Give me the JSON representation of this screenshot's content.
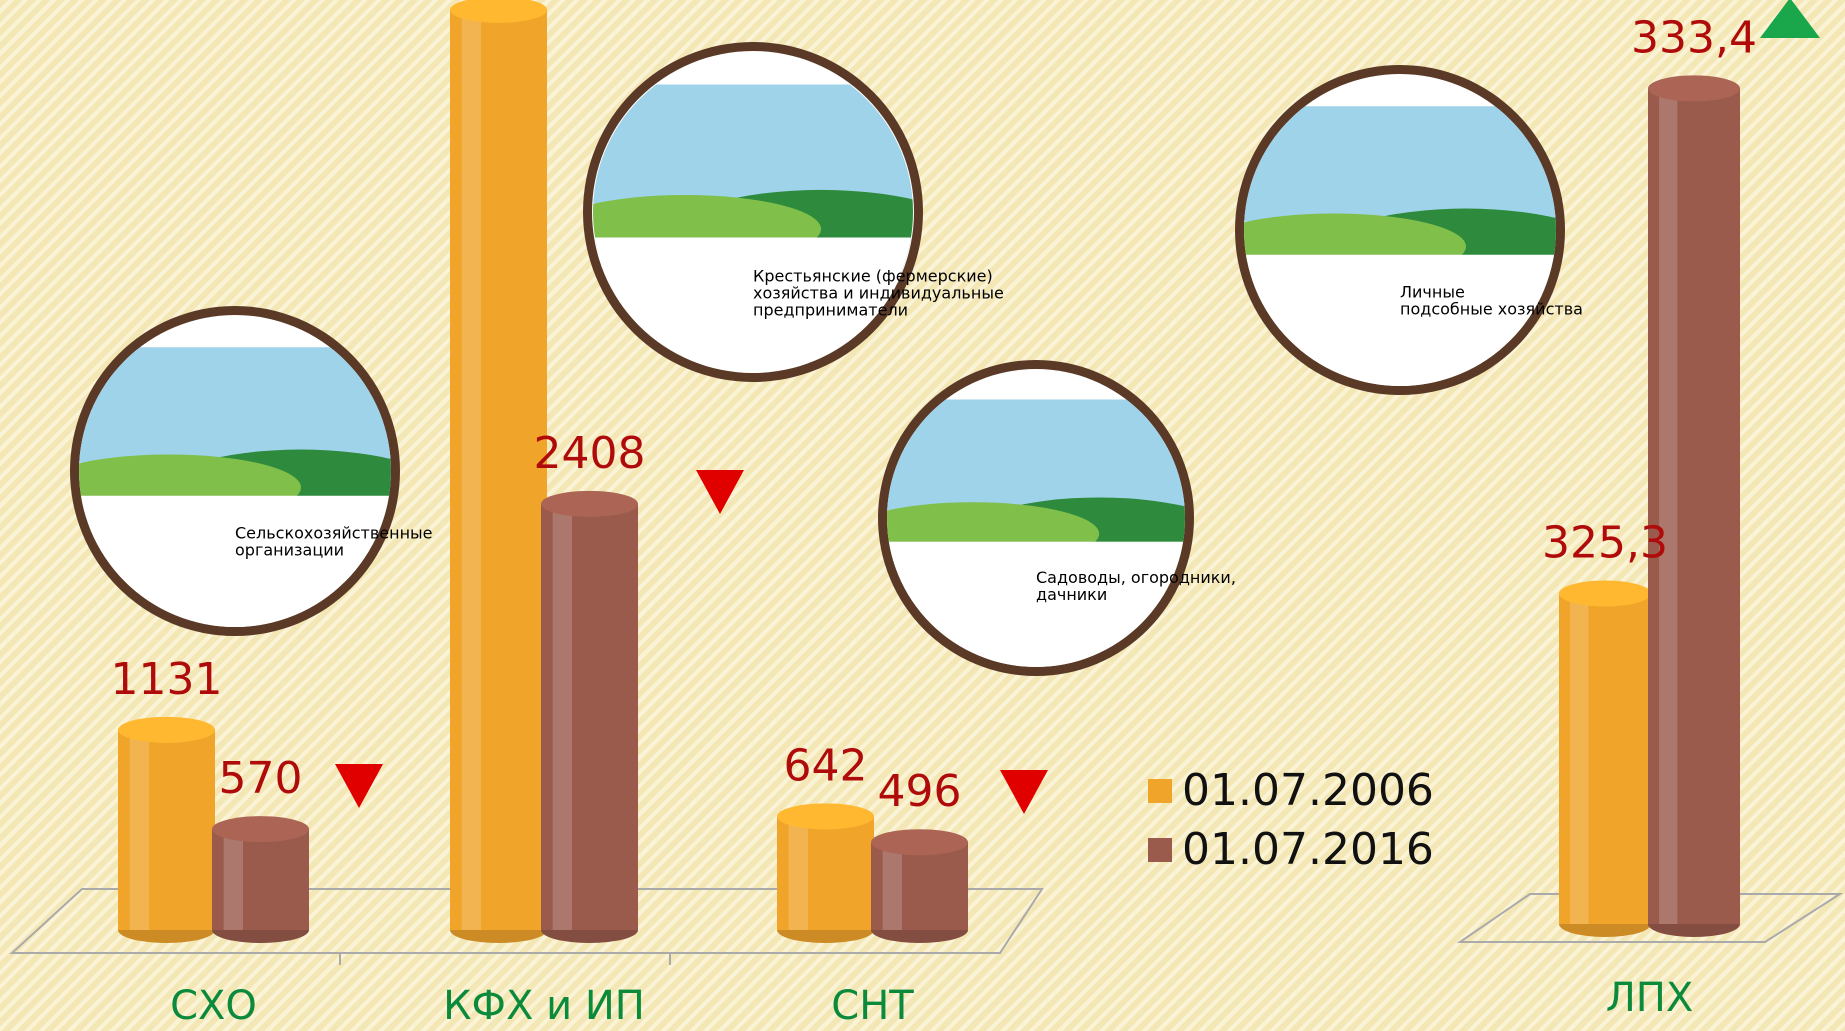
{
  "chart_data": [
    {
      "type": "bar",
      "categories": [
        "СХО",
        "КФХ и ИП",
        "СНТ"
      ],
      "series": [
        {
          "name": "01.07.2006",
          "color": "#f0a42a",
          "values": [
            1131,
            5200,
            642
          ],
          "value_labels": [
            "1131",
            null,
            "642"
          ]
        },
        {
          "name": "01.07.2016",
          "color": "#9a5a4c",
          "values": [
            570,
            2408,
            496
          ],
          "value_labels": [
            "570",
            "2408",
            "496"
          ]
        }
      ],
      "ylim": [
        0,
        5250
      ]
    },
    {
      "type": "bar",
      "categories": [
        "ЛПХ"
      ],
      "series": [
        {
          "color": "#f0a42a",
          "values": [
            325.3
          ],
          "value_labels": [
            "325,3"
          ]
        },
        {
          "color": "#9a5a4c",
          "values": [
            333.4
          ],
          "value_labels": [
            "333,4"
          ]
        }
      ],
      "ylim": [
        320,
        334
      ]
    }
  ],
  "badges": [
    {
      "lines": [
        "Сельскохозяйственные",
        "организации"
      ]
    },
    {
      "lines": [
        "Крестьянские (фермерские)",
        "хозяйства и индивидуальные",
        "предприниматели"
      ]
    },
    {
      "lines": [
        "Садоводы, огородники,",
        "дачники"
      ]
    },
    {
      "lines": [
        "Личные",
        "подсобные хозяйства"
      ]
    }
  ]
}
